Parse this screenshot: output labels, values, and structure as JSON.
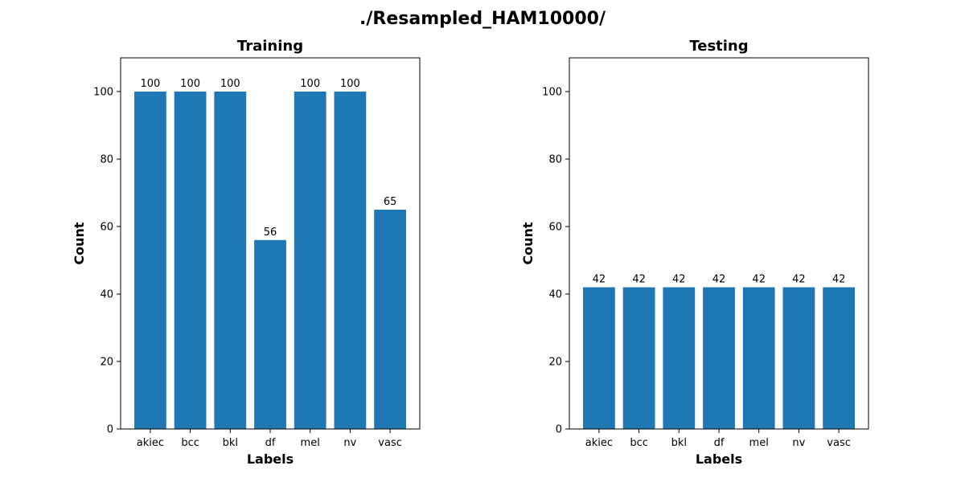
{
  "figure": {
    "title": "./Resampled_HAM10000/"
  },
  "colors": {
    "bar": "#1f77b4",
    "axes": "#000000",
    "background": "#ffffff"
  },
  "chart_data": [
    {
      "type": "bar",
      "title": "Training",
      "xlabel": "Labels",
      "ylabel": "Count",
      "categories": [
        "akiec",
        "bcc",
        "bkl",
        "df",
        "mel",
        "nv",
        "vasc"
      ],
      "values": [
        100,
        100,
        100,
        56,
        100,
        100,
        65
      ],
      "data_labels": [
        "100",
        "100",
        "100",
        "56",
        "100",
        "100",
        "65"
      ],
      "ylim": [
        0,
        110
      ],
      "yticks": [
        0,
        20,
        40,
        60,
        80,
        100
      ],
      "grid": false,
      "legend": "none"
    },
    {
      "type": "bar",
      "title": "Testing",
      "xlabel": "Labels",
      "ylabel": "Count",
      "categories": [
        "akiec",
        "bcc",
        "bkl",
        "df",
        "mel",
        "nv",
        "vasc"
      ],
      "values": [
        42,
        42,
        42,
        42,
        42,
        42,
        42
      ],
      "data_labels": [
        "42",
        "42",
        "42",
        "42",
        "42",
        "42",
        "42"
      ],
      "ylim": [
        0,
        110
      ],
      "yticks": [
        0,
        20,
        40,
        60,
        80,
        100
      ],
      "grid": false,
      "legend": "none"
    }
  ]
}
